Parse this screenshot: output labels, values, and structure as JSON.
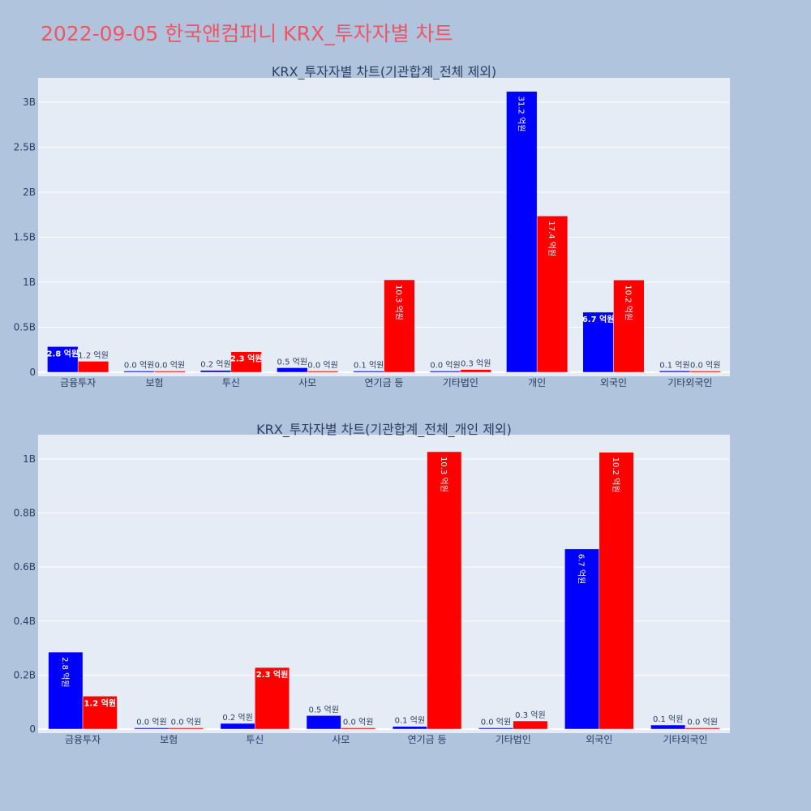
{
  "title": "2022-09-05 한국앤컴퍼니 KRX_투자자별 차트",
  "colors": {
    "background": "#b0c4de",
    "plot_bg": "#e5ecf6",
    "title": "#ef5565",
    "series_a": "#0000ff",
    "series_b": "#ff0000"
  },
  "chart_data": [
    {
      "type": "bar",
      "title": "KRX_투자자별 차트(기관합계_전체 제외)",
      "categories": [
        "금융투자",
        "보험",
        "투신",
        "사모",
        "연기금 등",
        "기타법인",
        "개인",
        "외국인",
        "기타외국인"
      ],
      "yticks": [
        "0",
        "0.5B",
        "1B",
        "1.5B",
        "2B",
        "2.5B",
        "3B"
      ],
      "ytick_values": [
        0,
        500000000,
        1000000000,
        1500000000,
        2000000000,
        2500000000,
        3000000000
      ],
      "ylim": [
        0,
        3270000000
      ],
      "grid": true,
      "series": [
        {
          "color": "#0000ff",
          "values": [
            285000000,
            3000000,
            21000000,
            50000000,
            10000000,
            4000000,
            3120000000,
            667000000,
            15000000
          ],
          "labels": [
            "2.8 억원",
            "0.0 억원",
            "0.2 억원",
            "0.5 억원",
            "0.1 억원",
            "0.0 억원",
            "31.2 억원",
            "6.7 억원",
            "0.1 억원"
          ]
        },
        {
          "color": "#ff0000",
          "values": [
            122000000,
            3000000,
            228000000,
            2000000,
            1027000000,
            30000000,
            1736000000,
            1025000000,
            1000000
          ],
          "labels": [
            "1.2 억원",
            "0.0 억원",
            "2.3 억원",
            "0.0 억원",
            "10.3 억원",
            "0.3 억원",
            "17.4 억원",
            "10.2 억원",
            "0.0 억원"
          ]
        }
      ]
    },
    {
      "type": "bar",
      "title": "KRX_투자자별 차트(기관합계_전체_개인 제외)",
      "categories": [
        "금융투자",
        "보험",
        "투신",
        "사모",
        "연기금 등",
        "기타법인",
        "외국인",
        "기타외국인"
      ],
      "yticks": [
        "0",
        "0.2B",
        "0.4B",
        "0.6B",
        "0.8B",
        "1B"
      ],
      "ytick_values": [
        0,
        200000000,
        400000000,
        600000000,
        800000000,
        1000000000
      ],
      "ylim": [
        0,
        1090000000
      ],
      "grid": true,
      "series": [
        {
          "color": "#0000ff",
          "values": [
            285000000,
            3000000,
            21000000,
            50000000,
            10000000,
            4000000,
            667000000,
            15000000
          ],
          "labels": [
            "2.8 억원",
            "0.0 억원",
            "0.2 억원",
            "0.5 억원",
            "0.1 억원",
            "0.0 억원",
            "6.7 억원",
            "0.1 억원"
          ]
        },
        {
          "color": "#ff0000",
          "values": [
            122000000,
            3000000,
            228000000,
            2000000,
            1027000000,
            30000000,
            1025000000,
            1000000
          ],
          "labels": [
            "1.2 억원",
            "0.0 억원",
            "2.3 억원",
            "0.0 억원",
            "10.3 억원",
            "0.3 억원",
            "10.2 억원",
            "0.0 억원"
          ]
        }
      ]
    }
  ]
}
